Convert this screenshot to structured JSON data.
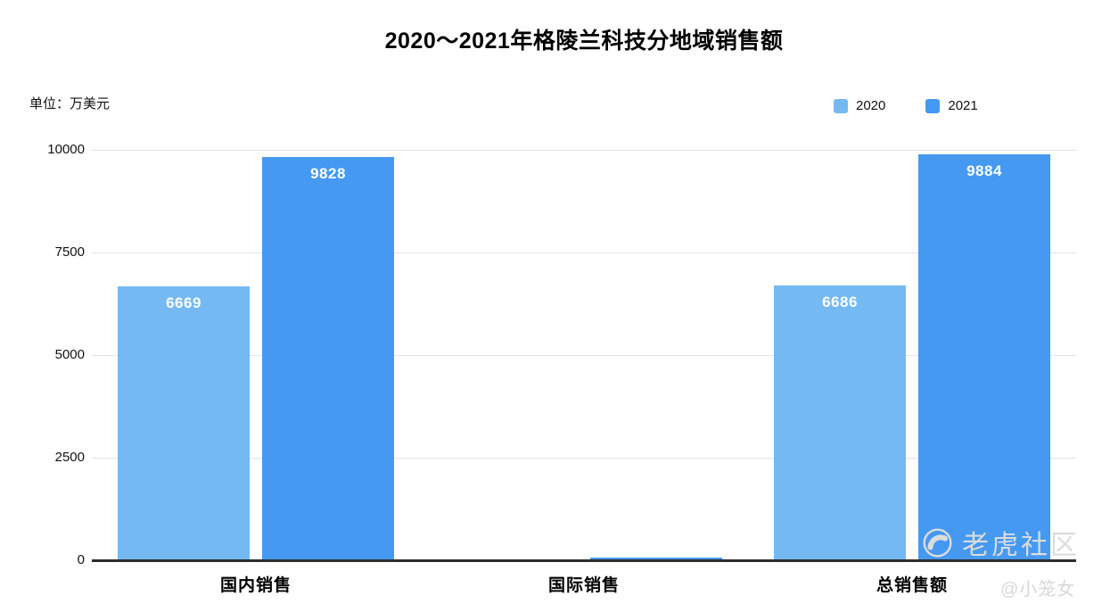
{
  "title": "2020～2021年格陵兰科技分地域销售额",
  "unit_label": "单位：万美元",
  "legend": {
    "position": "top-right",
    "items": [
      {
        "label": "2020",
        "color": "#74b9f2"
      },
      {
        "label": "2021",
        "color": "#4599f1"
      }
    ]
  },
  "watermark": {
    "brand": "老虎社区",
    "author": "@小笼女",
    "logo": "tiger-paw-icon",
    "color": "#dcdcdc"
  },
  "colors": {
    "series_2020": "#74b9f2",
    "series_2021": "#4599f1",
    "axis_line": "#2d2d2d",
    "gridline": "#e3e3e3",
    "bar_value_label": "#ffffff"
  },
  "chart_data": {
    "type": "bar",
    "title": "2020～2021年格陵兰科技分地域销售额",
    "unit": "万美元",
    "categories": [
      "国内销售",
      "国际销售",
      "总销售额"
    ],
    "series": [
      {
        "name": "2020",
        "color": "#74b9f2",
        "values": [
          6669,
          17,
          6686
        ]
      },
      {
        "name": "2021",
        "color": "#4599f1",
        "values": [
          9828,
          56,
          9884
        ]
      }
    ],
    "visible_data_labels": [
      6669,
      9828,
      6686,
      9884
    ],
    "y_ticks": [
      0,
      2500,
      5000,
      7500,
      10000
    ],
    "ylim": [
      0,
      10000
    ],
    "grid": true,
    "legend_position": "top-right"
  }
}
